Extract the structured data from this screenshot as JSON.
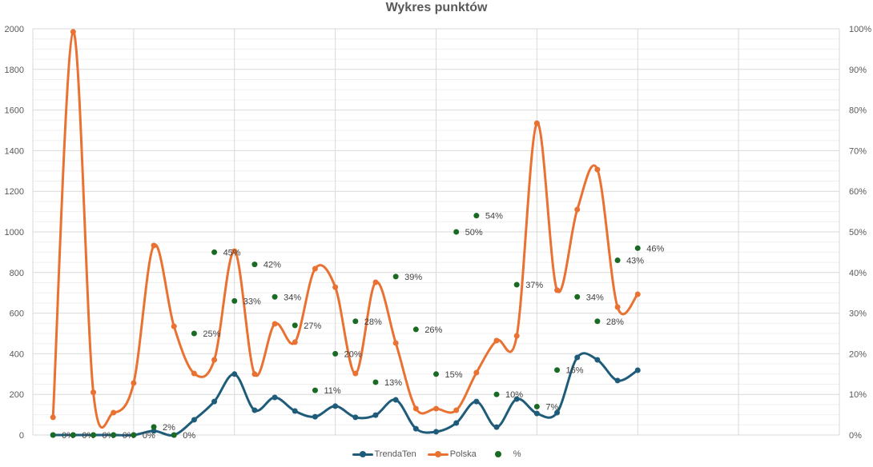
{
  "chart_data": {
    "type": "line",
    "title": "Wykres punktów",
    "xlabel": "",
    "ylabel": "",
    "xlim": [
      0,
      40
    ],
    "x_gridlines": [
      5,
      10,
      15,
      20,
      25,
      30,
      35,
      40
    ],
    "ylim": [
      0,
      2000
    ],
    "y_ticks": [
      0,
      200,
      400,
      600,
      800,
      1000,
      1200,
      1400,
      1600,
      1800,
      2000
    ],
    "y_minor_step": 50,
    "y2lim": [
      0,
      100
    ],
    "y2_ticks": [
      "0%",
      "10%",
      "20%",
      "30%",
      "40%",
      "50%",
      "60%",
      "70%",
      "80%",
      "90%",
      "100%"
    ],
    "legend_position": "bottom",
    "x": [
      1,
      2,
      3,
      4,
      5,
      6,
      7,
      8,
      9,
      10,
      11,
      12,
      13,
      14,
      15,
      16,
      17,
      18,
      19,
      20,
      21,
      22,
      23,
      24,
      25,
      26,
      27,
      28,
      29,
      30
    ],
    "series": [
      {
        "name": "TrendaTen",
        "axis": "left",
        "style": "smooth-line-markers",
        "color": "#1F5C7A",
        "values": [
          0,
          0,
          0,
          0,
          0,
          20,
          0,
          75,
          165,
          300,
          122,
          185,
          118,
          90,
          142,
          87,
          98,
          173,
          31,
          16,
          59,
          165,
          39,
          177,
          106,
          110,
          382,
          370,
          268,
          319
        ]
      },
      {
        "name": "Polska",
        "axis": "left",
        "style": "smooth-line-markers",
        "color": "#E97132",
        "values": [
          87,
          1985,
          210,
          110,
          256,
          933,
          535,
          303,
          370,
          905,
          300,
          547,
          457,
          819,
          728,
          303,
          752,
          453,
          130,
          130,
          122,
          307,
          465,
          488,
          1535,
          713,
          1110,
          1307,
          630,
          693
        ]
      },
      {
        "name": "%",
        "axis": "right",
        "style": "markers-with-labels",
        "color": "#196B24",
        "values": [
          0,
          0,
          0,
          0,
          0,
          2,
          0,
          25,
          45,
          33,
          42,
          34,
          27,
          11,
          20,
          28,
          13,
          39,
          26,
          15,
          50,
          54,
          10,
          37,
          7,
          16,
          34,
          28,
          43,
          46
        ],
        "labels": [
          "0%",
          "0%",
          "0%",
          "0%",
          "0%",
          "2%",
          "0%",
          "25%",
          "45%",
          "33%",
          "42%",
          "34%",
          "27%",
          "11%",
          "20%",
          "28%",
          "13%",
          "39%",
          "26%",
          "15%",
          "50%",
          "54%",
          "10%",
          "37%",
          "7%",
          "16%",
          "34%",
          "28%",
          "43%",
          "46%"
        ]
      }
    ]
  },
  "legend": {
    "items": [
      {
        "label": "TrendaTen"
      },
      {
        "label": "Polska"
      },
      {
        "label": "%"
      }
    ]
  },
  "colors": {
    "gridline_major": "#D9D9D9",
    "gridline_minor": "#EFEFEF",
    "axis_text": "#595959"
  }
}
